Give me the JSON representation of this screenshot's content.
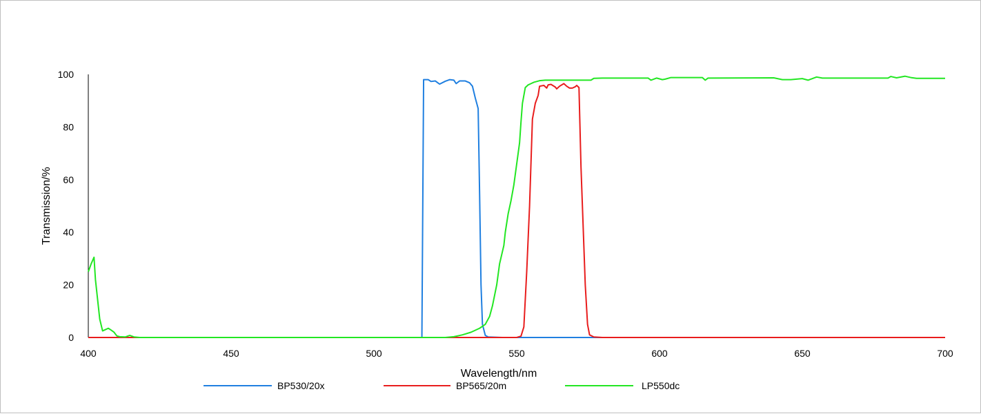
{
  "chart_data": {
    "type": "line",
    "title": "",
    "xlabel": "Wavelength/nm",
    "ylabel": "Transmission/%",
    "xlim": [
      400,
      700
    ],
    "ylim": [
      0,
      100
    ],
    "x_ticks": [
      400,
      450,
      500,
      550,
      600,
      650,
      700
    ],
    "y_ticks": [
      0,
      20,
      40,
      60,
      80,
      100
    ],
    "grid": false,
    "legend_position": "bottom",
    "series": [
      {
        "name": "BP530/20x",
        "color": "#1f7fe0",
        "points": [
          [
            400,
            0
          ],
          [
            516.8,
            0
          ],
          [
            517.4,
            98
          ],
          [
            519,
            98
          ],
          [
            520,
            97.3
          ],
          [
            521.5,
            97.5
          ],
          [
            523,
            96.3
          ],
          [
            525,
            97.4
          ],
          [
            526.5,
            98
          ],
          [
            528,
            97.8
          ],
          [
            528.8,
            96.5
          ],
          [
            530,
            97.5
          ],
          [
            532,
            97.5
          ],
          [
            533.5,
            96.8
          ],
          [
            534.5,
            95.5
          ],
          [
            535.5,
            91
          ],
          [
            536.5,
            87
          ],
          [
            537,
            55
          ],
          [
            537.5,
            20
          ],
          [
            538,
            5
          ],
          [
            539,
            0.8
          ],
          [
            540,
            0.2
          ],
          [
            545,
            0
          ],
          [
            700,
            0
          ]
        ]
      },
      {
        "name": "BP565/20m",
        "color": "#e81c1c",
        "points": [
          [
            400,
            0
          ],
          [
            550,
            0
          ],
          [
            551.5,
            0.5
          ],
          [
            552.5,
            4
          ],
          [
            553.5,
            25
          ],
          [
            554.5,
            50
          ],
          [
            555.5,
            83
          ],
          [
            556.5,
            89
          ],
          [
            557.5,
            92
          ],
          [
            558,
            95.5
          ],
          [
            559.5,
            95.8
          ],
          [
            560.5,
            94.8
          ],
          [
            561,
            96
          ],
          [
            562,
            96.2
          ],
          [
            563.5,
            95.2
          ],
          [
            564,
            94.5
          ],
          [
            565,
            95.5
          ],
          [
            566.5,
            96.5
          ],
          [
            567.5,
            95.5
          ],
          [
            568.5,
            94.8
          ],
          [
            569.5,
            94.8
          ],
          [
            570.5,
            95.3
          ],
          [
            571,
            95.8
          ],
          [
            571.8,
            95
          ],
          [
            572.5,
            65
          ],
          [
            573.5,
            35
          ],
          [
            574,
            20
          ],
          [
            574.8,
            5
          ],
          [
            575.5,
            1
          ],
          [
            577,
            0.2
          ],
          [
            580,
            0
          ],
          [
            700,
            0
          ]
        ]
      },
      {
        "name": "LP550dc",
        "color": "#22e622",
        "points": [
          [
            400,
            25
          ],
          [
            401,
            28
          ],
          [
            402,
            30.5
          ],
          [
            402.5,
            22
          ],
          [
            403.5,
            12
          ],
          [
            404,
            7
          ],
          [
            405,
            2.5
          ],
          [
            406,
            3
          ],
          [
            407,
            3.5
          ],
          [
            408,
            2.8
          ],
          [
            409,
            2
          ],
          [
            410,
            0.6
          ],
          [
            411,
            0.3
          ],
          [
            413,
            0.2
          ],
          [
            414.5,
            0.8
          ],
          [
            416,
            0.2
          ],
          [
            418,
            0
          ],
          [
            525,
            0
          ],
          [
            528,
            0.3
          ],
          [
            531,
            1
          ],
          [
            534,
            2
          ],
          [
            537,
            3.5
          ],
          [
            539,
            5
          ],
          [
            540.5,
            8
          ],
          [
            541.5,
            12
          ],
          [
            543,
            20
          ],
          [
            544,
            28
          ],
          [
            545.5,
            35
          ],
          [
            546,
            40
          ],
          [
            547,
            47
          ],
          [
            548,
            52
          ],
          [
            549,
            58
          ],
          [
            550,
            66
          ],
          [
            551,
            74
          ],
          [
            551.5,
            82
          ],
          [
            552,
            89
          ],
          [
            553,
            95
          ],
          [
            554,
            96
          ],
          [
            555,
            96.5
          ],
          [
            556,
            97
          ],
          [
            558,
            97.6
          ],
          [
            560,
            97.8
          ],
          [
            570,
            97.8
          ],
          [
            576,
            97.8
          ],
          [
            577,
            98.5
          ],
          [
            580,
            98.6
          ],
          [
            596,
            98.6
          ],
          [
            597,
            97.8
          ],
          [
            599,
            98.6
          ],
          [
            601,
            98
          ],
          [
            602,
            98.2
          ],
          [
            604,
            98.8
          ],
          [
            615,
            98.8
          ],
          [
            616,
            97.8
          ],
          [
            617,
            98.6
          ],
          [
            640,
            98.7
          ],
          [
            643,
            98
          ],
          [
            646,
            98
          ],
          [
            650,
            98.4
          ],
          [
            652,
            97.8
          ],
          [
            655,
            99
          ],
          [
            657,
            98.6
          ],
          [
            680,
            98.6
          ],
          [
            681,
            99.2
          ],
          [
            683,
            98.7
          ],
          [
            686,
            99.3
          ],
          [
            688,
            98.8
          ],
          [
            690,
            98.5
          ],
          [
            700,
            98.5
          ]
        ]
      }
    ]
  }
}
